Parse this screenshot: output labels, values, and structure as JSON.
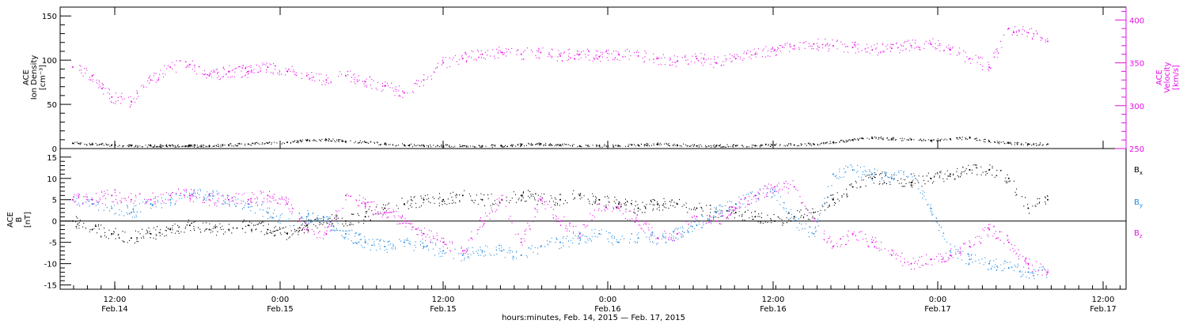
{
  "chart_data": [
    {
      "type": "scatter",
      "ylabel_lines": [
        "ACE",
        "Ion Density",
        "[cm⁻³]"
      ],
      "y2label_lines": [
        "ACE",
        "Velocity",
        "[km/s]"
      ],
      "ylim": [
        0,
        160
      ],
      "y2lim": [
        250,
        415
      ],
      "yticks": [
        0,
        50,
        100,
        150
      ],
      "y2ticks": [
        250,
        300,
        350,
        400
      ],
      "axis_colors": {
        "left": "#000000",
        "right": "#e60ee6"
      },
      "series": [
        {
          "axis": "left",
          "color": "#000000",
          "x": [
            0,
            2,
            4,
            6,
            8,
            10,
            12,
            14,
            16,
            18,
            20,
            22,
            24,
            26,
            28,
            30,
            32,
            34,
            36,
            38,
            40,
            42,
            44,
            46,
            48,
            50,
            52,
            54,
            56,
            58,
            60,
            62,
            64,
            66,
            68,
            70,
            72,
            74,
            76,
            78,
            80,
            82,
            84,
            86,
            88,
            90,
            92,
            94,
            96,
            98,
            100
          ],
          "y": [
            6,
            5,
            4,
            3,
            3,
            3,
            3,
            3,
            4,
            5,
            6,
            7,
            9,
            10,
            8,
            7,
            5,
            4,
            3,
            3,
            3,
            3,
            3,
            4,
            5,
            4,
            3,
            3,
            3,
            4,
            5,
            4,
            3,
            3,
            3,
            3,
            4,
            4,
            5,
            7,
            10,
            12,
            11,
            10,
            9,
            11,
            12,
            8,
            6,
            5,
            5
          ]
        },
        {
          "axis": "right",
          "color": "#e60ee6",
          "x": [
            0,
            2,
            3,
            4,
            6,
            8,
            10,
            12,
            14,
            16,
            18,
            20,
            22,
            24,
            26,
            28,
            30,
            32,
            34,
            36,
            38,
            40,
            42,
            44,
            46,
            48,
            50,
            52,
            54,
            56,
            58,
            60,
            62,
            64,
            66,
            68,
            70,
            72,
            74,
            76,
            78,
            80,
            82,
            84,
            86,
            88,
            90,
            92,
            94,
            96,
            98,
            100
          ],
          "y": [
            345,
            335,
            320,
            310,
            305,
            330,
            345,
            348,
            335,
            340,
            340,
            345,
            340,
            335,
            330,
            335,
            328,
            323,
            315,
            330,
            350,
            355,
            360,
            362,
            360,
            362,
            358,
            360,
            357,
            360,
            358,
            355,
            352,
            355,
            350,
            355,
            360,
            365,
            370,
            372,
            370,
            368,
            365,
            367,
            370,
            372,
            365,
            355,
            345,
            390,
            385,
            375
          ]
        }
      ]
    },
    {
      "type": "scatter",
      "ylabel_lines": [
        "ACE",
        "B",
        "[nT]"
      ],
      "ylim": [
        -16,
        17
      ],
      "yticks": [
        -15,
        -10,
        -5,
        0,
        5,
        10,
        15
      ],
      "zero_line": true,
      "series": [
        {
          "name": "Bx",
          "color": "#000000",
          "x": [
            0,
            2,
            4,
            6,
            8,
            10,
            12,
            14,
            16,
            18,
            20,
            22,
            24,
            26,
            28,
            30,
            32,
            34,
            36,
            38,
            40,
            42,
            44,
            46,
            48,
            50,
            52,
            54,
            56,
            58,
            60,
            62,
            64,
            66,
            68,
            70,
            72,
            74,
            76,
            78,
            80,
            82,
            84,
            86,
            88,
            90,
            92,
            94,
            96,
            98,
            100
          ],
          "y": [
            0,
            -2,
            -3,
            -4,
            -3,
            -2,
            -1,
            -2,
            -2,
            -1,
            -2,
            -3,
            -1,
            0,
            0,
            1,
            3,
            4,
            5,
            5,
            6,
            5,
            5,
            6,
            5,
            5,
            6,
            5,
            4,
            3,
            4,
            4,
            3,
            2,
            2,
            1,
            0,
            1,
            2,
            5,
            8,
            10,
            10,
            9,
            10,
            11,
            12,
            12,
            10,
            3,
            5
          ]
        },
        {
          "name": "By",
          "color": "#1e88e0",
          "x": [
            0,
            2,
            4,
            6,
            8,
            10,
            12,
            14,
            16,
            18,
            20,
            22,
            24,
            26,
            28,
            30,
            32,
            34,
            36,
            38,
            40,
            42,
            44,
            46,
            48,
            50,
            52,
            54,
            56,
            58,
            60,
            62,
            64,
            66,
            68,
            70,
            72,
            74,
            76,
            78,
            80,
            82,
            84,
            86,
            88,
            90,
            92,
            94,
            96,
            98,
            100
          ],
          "y": [
            5,
            4,
            3,
            2,
            4,
            5,
            6,
            6,
            5,
            4,
            2,
            0,
            1,
            0,
            -3,
            -5,
            -6,
            -5,
            -6,
            -7,
            -8,
            -7,
            -7,
            -8,
            -6,
            -5,
            -4,
            -3,
            -5,
            -4,
            -4,
            -3,
            -1,
            2,
            4,
            6,
            7,
            0,
            -3,
            11,
            12,
            11,
            10,
            11,
            3,
            -7,
            -9,
            -10,
            -11,
            -12,
            -12
          ]
        },
        {
          "name": "Bz",
          "color": "#e60ee6",
          "x": [
            0,
            2,
            4,
            6,
            8,
            10,
            12,
            14,
            16,
            18,
            20,
            22,
            24,
            26,
            28,
            30,
            32,
            34,
            36,
            38,
            40,
            42,
            44,
            46,
            48,
            50,
            52,
            54,
            56,
            58,
            60,
            62,
            64,
            66,
            68,
            70,
            72,
            74,
            76,
            78,
            80,
            82,
            84,
            86,
            88,
            90,
            92,
            94,
            96,
            98,
            100
          ],
          "y": [
            5,
            5,
            6,
            5,
            5,
            6,
            6,
            5,
            5,
            5,
            6,
            4,
            -2,
            -3,
            6,
            4,
            2,
            0,
            -3,
            -5,
            -7,
            0,
            5,
            -5,
            5,
            0,
            -3,
            4,
            3,
            0,
            -4,
            -3,
            1,
            0,
            3,
            6,
            8,
            8,
            0,
            -6,
            -3,
            -5,
            -8,
            -10,
            -9,
            -8,
            -6,
            -2,
            -5,
            -10,
            -12
          ]
        }
      ],
      "legend": {
        "position": "right",
        "labels": [
          "Bx",
          "By",
          "Bz"
        ]
      }
    }
  ],
  "time_axis": {
    "ticks": [
      {
        "time": "12:00",
        "date": "Feb.14"
      },
      {
        "time": "0:00",
        "date": "Feb.15"
      },
      {
        "time": "12:00",
        "date": "Feb.15"
      },
      {
        "time": "0:00",
        "date": "Feb.16"
      },
      {
        "time": "12:00",
        "date": "Feb.16"
      },
      {
        "time": "0:00",
        "date": "Feb.17"
      },
      {
        "time": "12:00",
        "date": "Feb.17"
      }
    ],
    "xlabel": "hours:minutes, Feb. 14, 2015 — Feb. 17, 2015"
  }
}
